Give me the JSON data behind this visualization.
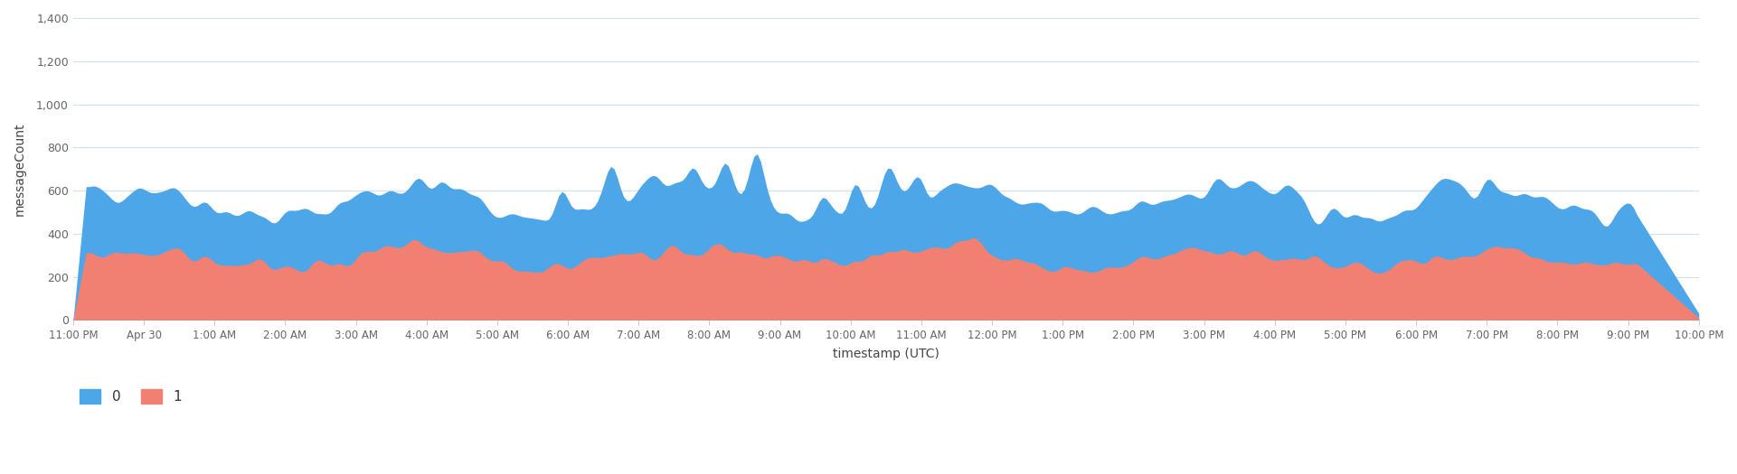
{
  "title": "",
  "xlabel": "timestamp (UTC)",
  "ylabel": "messageCount",
  "ylim": [
    0,
    1400
  ],
  "yticks": [
    0,
    200,
    400,
    600,
    800,
    1000,
    1200,
    1400
  ],
  "color_blue": "#4DA6E8",
  "color_red": "#F28072",
  "legend_labels": [
    "0",
    "1"
  ],
  "x_tick_labels": [
    "11:00 PM",
    "Apr 30",
    "1:00 AM",
    "2:00 AM",
    "3:00 AM",
    "4:00 AM",
    "5:00 AM",
    "6:00 AM",
    "7:00 AM",
    "8:00 AM",
    "9:00 AM",
    "10:00 AM",
    "11:00 AM",
    "12:00 PM",
    "1:00 PM",
    "2:00 PM",
    "3:00 PM",
    "4:00 PM",
    "5:00 PM",
    "6:00 PM",
    "7:00 PM",
    "8:00 PM",
    "9:00 PM",
    "10:00 PM"
  ],
  "background_color": "#ffffff",
  "grid_color": "#d0e0f0"
}
